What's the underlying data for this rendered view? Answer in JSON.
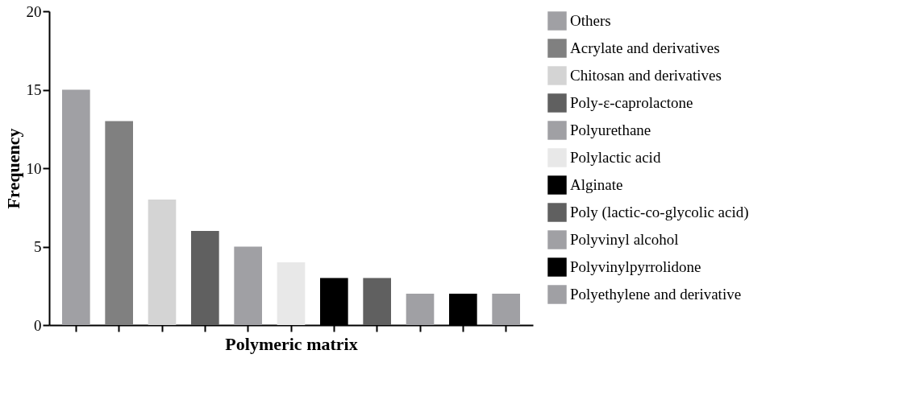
{
  "chart_data": {
    "type": "bar",
    "xlabel": "Polymeric matrix",
    "ylabel": "Frequency",
    "categories": [
      null,
      null,
      null,
      null,
      null,
      null,
      null,
      null,
      null,
      null,
      null
    ],
    "series": [
      {
        "name": "Others",
        "color": "#a0a0a4",
        "values": [
          15,
          null,
          null,
          null,
          null,
          null,
          null,
          null,
          null,
          null,
          null
        ]
      },
      {
        "name": "Acrylate and derivatives",
        "color": "#808080",
        "values": [
          null,
          13,
          null,
          null,
          null,
          null,
          null,
          null,
          null,
          null,
          null
        ]
      },
      {
        "name": "Chitosan and derivatives",
        "color": "#d4d4d4",
        "values": [
          null,
          null,
          8,
          null,
          null,
          null,
          null,
          null,
          null,
          null,
          null
        ]
      },
      {
        "name": "Poly-ε-caprolactone",
        "color": "#606060",
        "values": [
          null,
          null,
          null,
          6,
          null,
          null,
          null,
          null,
          null,
          null,
          null
        ]
      },
      {
        "name": "Polyurethane",
        "color": "#a0a0a4",
        "values": [
          null,
          null,
          null,
          null,
          5,
          null,
          null,
          null,
          null,
          null,
          null
        ]
      },
      {
        "name": "Polylactic acid",
        "color": "#e8e8e8",
        "values": [
          null,
          null,
          null,
          null,
          null,
          4,
          null,
          null,
          null,
          null,
          null
        ]
      },
      {
        "name": "Alginate",
        "color": "#000000",
        "values": [
          null,
          null,
          null,
          null,
          null,
          null,
          3,
          null,
          null,
          null,
          null
        ]
      },
      {
        "name": "Poly (lactic-co-glycolic acid)",
        "color": "#606060",
        "values": [
          null,
          null,
          null,
          null,
          null,
          null,
          null,
          3,
          null,
          null,
          null
        ]
      },
      {
        "name": "Polyvinyl alcohol",
        "color": "#a0a0a4",
        "values": [
          null,
          null,
          null,
          null,
          null,
          null,
          null,
          null,
          2,
          null,
          null
        ]
      },
      {
        "name": "Polyvinylpyrrolidone",
        "color": "#000000",
        "values": [
          null,
          null,
          null,
          null,
          null,
          null,
          null,
          null,
          null,
          2,
          null
        ]
      },
      {
        "name": "Polyethylene and derivative",
        "color": "#a0a0a4",
        "values": [
          null,
          null,
          null,
          null,
          null,
          null,
          null,
          null,
          null,
          null,
          2
        ]
      }
    ],
    "ylim": [
      0,
      20
    ],
    "yticks": [
      0,
      5,
      10,
      15,
      20
    ],
    "grid": false,
    "legend": "right",
    "tick_labels": "y"
  }
}
